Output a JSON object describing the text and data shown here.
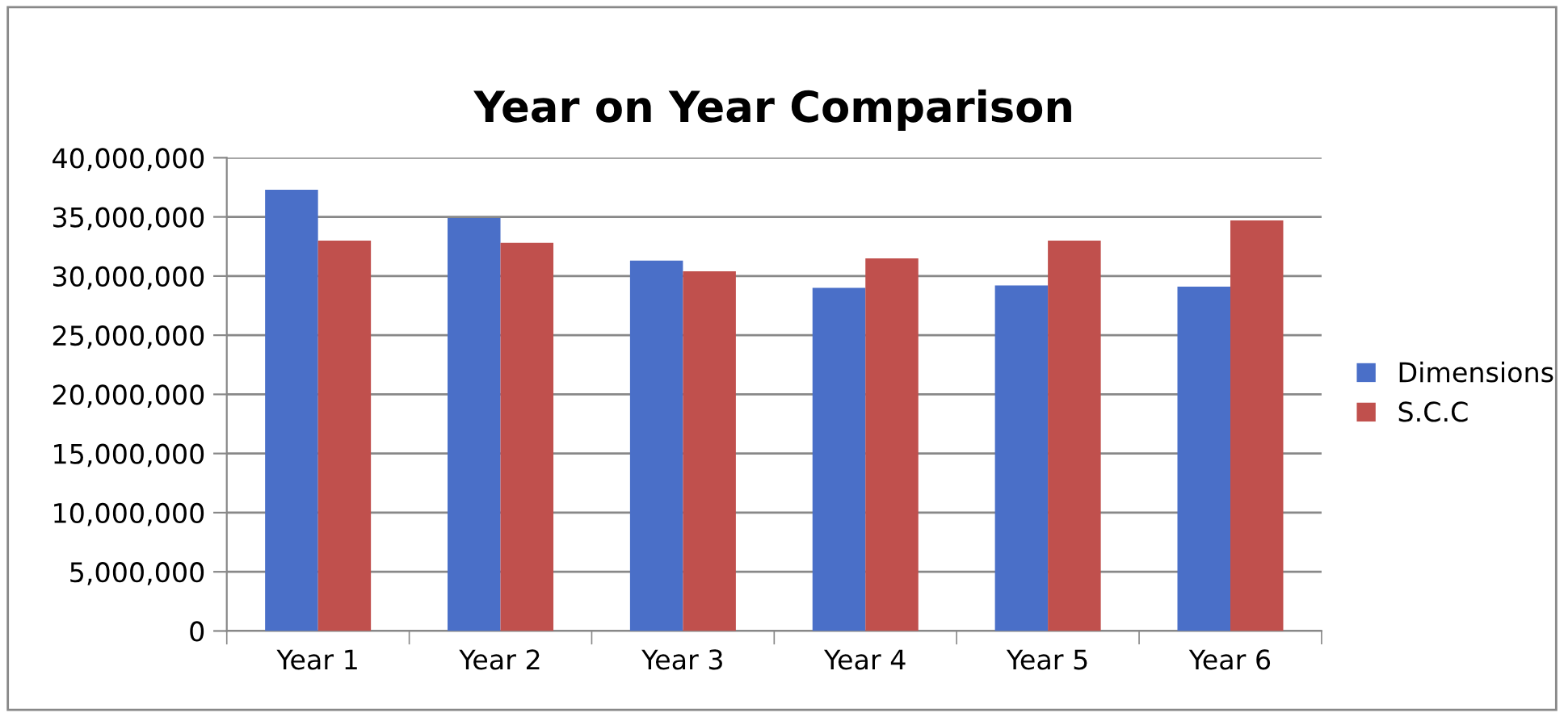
{
  "chart_data": {
    "type": "bar",
    "title": "Year on Year Comparison",
    "categories": [
      "Year 1",
      "Year 2",
      "Year 3",
      "Year 4",
      "Year 5",
      "Year 6"
    ],
    "series": [
      {
        "name": "Dimensions",
        "color": "#4a6fc8",
        "values": [
          37300000,
          34900000,
          31300000,
          29000000,
          29200000,
          29100000
        ]
      },
      {
        "name": "S.C.C",
        "color": "#c0504d",
        "values": [
          33000000,
          32800000,
          30400000,
          31500000,
          33000000,
          34700000
        ]
      }
    ],
    "ylim": [
      0,
      40000000
    ],
    "yticks": [
      {
        "value": 0,
        "label": "0"
      },
      {
        "value": 5000000,
        "label": "5,000,000"
      },
      {
        "value": 10000000,
        "label": "10,000,000"
      },
      {
        "value": 15000000,
        "label": "15,000,000"
      },
      {
        "value": 20000000,
        "label": "20,000,000"
      },
      {
        "value": 25000000,
        "label": "25,000,000"
      },
      {
        "value": 30000000,
        "label": "30,000,000"
      },
      {
        "value": 35000000,
        "label": "35,000,000"
      },
      {
        "value": 40000000,
        "label": "40,000,000"
      }
    ],
    "grid": "y",
    "legend": "right"
  }
}
